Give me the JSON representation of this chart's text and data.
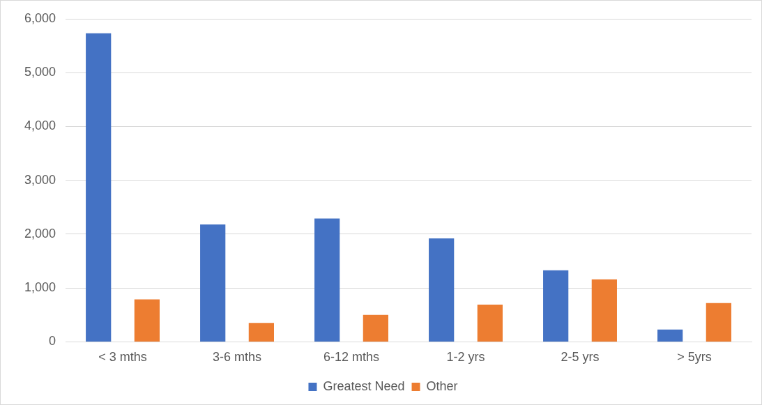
{
  "chart_data": {
    "type": "bar",
    "categories": [
      "< 3 mths",
      "3-6 mths",
      "6-12 mths",
      "1-2 yrs",
      "2-5 yrs",
      "> 5yrs"
    ],
    "series": [
      {
        "name": "Greatest Need",
        "color": "#4472c4",
        "values": [
          5730,
          2180,
          2290,
          1920,
          1330,
          230
        ]
      },
      {
        "name": "Other",
        "color": "#ed7d31",
        "values": [
          790,
          350,
          500,
          690,
          1160,
          720
        ]
      }
    ],
    "ylim": [
      0,
      6000
    ],
    "yticks": [
      0,
      {
        "value": 1000,
        "label": "1,000"
      },
      {
        "value": 2000,
        "label": "2,000"
      },
      {
        "value": 3000,
        "label": "3,000"
      },
      {
        "value": 4000,
        "label": "4,000"
      },
      {
        "value": 5000,
        "label": "5,000"
      },
      {
        "value": 6000,
        "label": "6,000"
      }
    ],
    "grid": "y",
    "legend": "bottom"
  }
}
